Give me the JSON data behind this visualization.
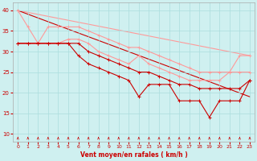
{
  "background_color": "#cff0f0",
  "grid_color": "#aadddd",
  "line_color_dark": "#cc0000",
  "line_color_light": "#ff9999",
  "xlabel": "Vent moyen/en rafales ( km/h )",
  "xlim": [
    -0.5,
    23.5
  ],
  "ylim": [
    8,
    42
  ],
  "yticks": [
    10,
    15,
    20,
    25,
    30,
    35,
    40
  ],
  "xticks": [
    0,
    1,
    2,
    3,
    4,
    5,
    6,
    7,
    8,
    9,
    10,
    11,
    12,
    13,
    14,
    15,
    16,
    17,
    18,
    19,
    20,
    21,
    22,
    23
  ],
  "series": [
    {
      "color": "#ff9999",
      "lw": 0.8,
      "x": [
        0,
        1,
        2,
        3,
        4,
        5,
        6,
        7,
        8,
        9,
        10,
        11,
        12,
        13,
        14,
        15,
        16,
        17,
        18,
        19,
        20,
        21,
        22,
        23
      ],
      "y": [
        40,
        36,
        32,
        32,
        32,
        33,
        33,
        32,
        30,
        29,
        28,
        27,
        29,
        27,
        26,
        25,
        24,
        23,
        23,
        23,
        23,
        25,
        29,
        29
      ]
    },
    {
      "color": "#ff9999",
      "lw": 0.8,
      "x": [
        0,
        1,
        2,
        3,
        4,
        5,
        6,
        7,
        8,
        9,
        10,
        11,
        12,
        13,
        14,
        15,
        16,
        17,
        18,
        19,
        20,
        21,
        22,
        23
      ],
      "y": [
        32,
        32,
        32,
        36,
        36,
        36,
        36,
        35,
        34,
        33,
        32,
        31,
        31,
        30,
        29,
        28,
        27,
        26,
        25,
        25,
        25,
        25,
        25,
        25
      ]
    },
    {
      "color": "#cc0000",
      "lw": 0.8,
      "x": [
        0,
        1,
        2,
        3,
        4,
        5,
        6,
        7,
        8,
        9,
        10,
        11,
        12,
        13,
        14,
        15,
        16,
        17,
        18,
        19,
        20,
        21,
        22,
        23
      ],
      "y": [
        32,
        32,
        32,
        32,
        32,
        32,
        29,
        27,
        26,
        25,
        24,
        23,
        19,
        22,
        22,
        22,
        18,
        18,
        18,
        14,
        18,
        18,
        18,
        23
      ]
    },
    {
      "color": "#cc0000",
      "lw": 0.8,
      "x": [
        0,
        1,
        2,
        3,
        4,
        5,
        6,
        7,
        8,
        9,
        10,
        11,
        12,
        13,
        14,
        15,
        16,
        17,
        18,
        19,
        20,
        21,
        22,
        23
      ],
      "y": [
        32,
        32,
        32,
        32,
        32,
        32,
        32,
        30,
        29,
        28,
        27,
        26,
        25,
        25,
        24,
        23,
        22,
        22,
        21,
        21,
        21,
        21,
        21,
        23
      ]
    },
    {
      "color": "#cc0000",
      "lw": 1.0,
      "x": [
        0,
        23
      ],
      "y": [
        40,
        19
      ]
    },
    {
      "color": "#ff9999",
      "lw": 1.0,
      "x": [
        0,
        23
      ],
      "y": [
        40,
        29
      ]
    }
  ]
}
